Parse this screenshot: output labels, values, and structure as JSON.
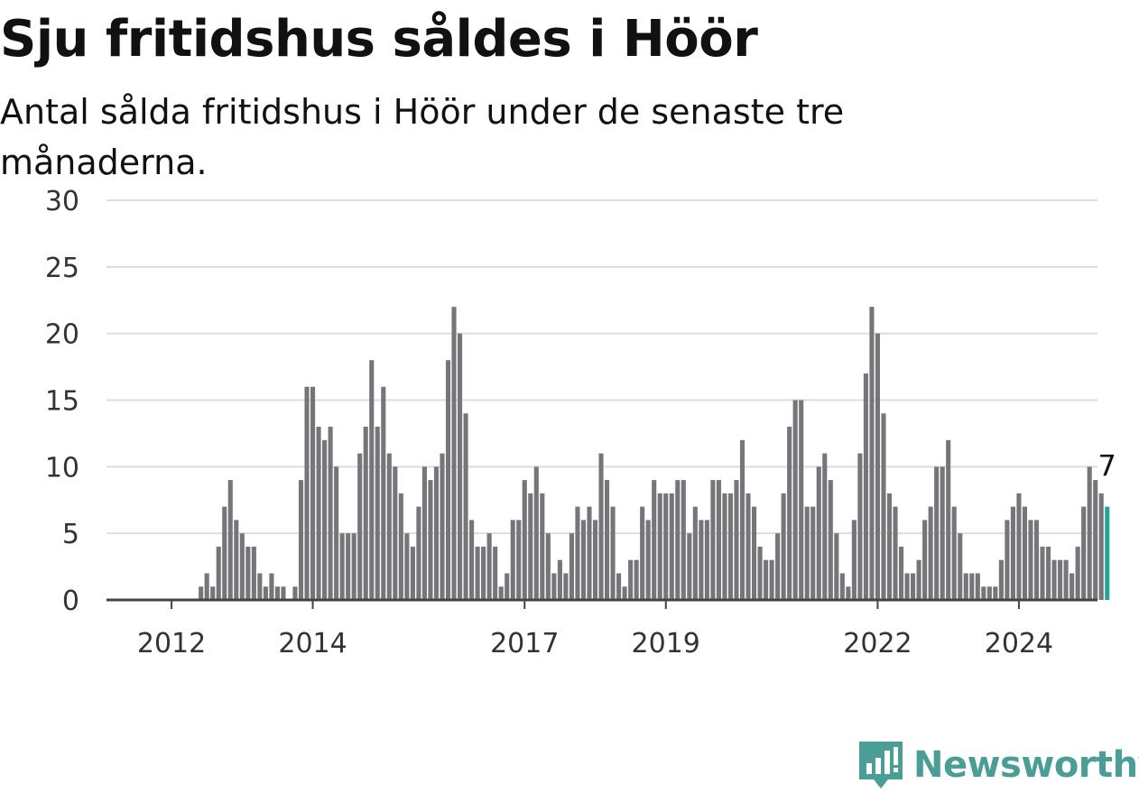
{
  "title": "Sju fritidshus såldes i Höör",
  "subtitle": "Antal sålda fritidshus i Höör under de senaste tre månaderna.",
  "brand": {
    "name": "Newsworthy",
    "color": "#4a9e96"
  },
  "colors": {
    "bar": "#76757a",
    "highlight": "#26a39a",
    "grid": "#dddddd",
    "axis": "#444444"
  },
  "chart_data": {
    "type": "bar",
    "ylim": [
      0,
      30
    ],
    "yticks": [
      0,
      5,
      10,
      15,
      20,
      25,
      30
    ],
    "first_bar_month": "2011-10",
    "xticks": [
      {
        "label": "2012",
        "month": "2012-01"
      },
      {
        "label": "2014",
        "month": "2014-01"
      },
      {
        "label": "2017",
        "month": "2017-01"
      },
      {
        "label": "2019",
        "month": "2019-01"
      },
      {
        "label": "2022",
        "month": "2022-01"
      },
      {
        "label": "2024",
        "month": "2024-01"
      }
    ],
    "values": [
      0,
      0,
      0,
      0,
      0,
      0,
      0,
      0,
      1,
      2,
      1,
      4,
      7,
      9,
      6,
      5,
      4,
      4,
      2,
      1,
      2,
      1,
      1,
      0,
      1,
      9,
      16,
      16,
      13,
      12,
      13,
      10,
      5,
      5,
      5,
      11,
      13,
      18,
      13,
      16,
      11,
      10,
      8,
      5,
      4,
      7,
      10,
      9,
      10,
      11,
      18,
      22,
      20,
      14,
      6,
      4,
      4,
      5,
      4,
      1,
      2,
      6,
      6,
      9,
      8,
      10,
      8,
      5,
      2,
      3,
      2,
      5,
      7,
      6,
      7,
      6,
      11,
      9,
      7,
      2,
      1,
      3,
      3,
      7,
      6,
      9,
      8,
      8,
      8,
      9,
      9,
      5,
      7,
      6,
      6,
      9,
      9,
      8,
      8,
      9,
      12,
      8,
      7,
      4,
      3,
      3,
      5,
      8,
      13,
      15,
      15,
      7,
      7,
      10,
      11,
      9,
      5,
      2,
      1,
      6,
      11,
      17,
      22,
      20,
      14,
      8,
      7,
      4,
      2,
      2,
      3,
      6,
      7,
      10,
      10,
      12,
      7,
      5,
      2,
      2,
      2,
      1,
      1,
      1,
      3,
      6,
      7,
      8,
      7,
      6,
      6,
      4,
      4,
      3,
      3,
      3,
      2,
      4,
      7,
      10,
      9,
      8,
      7
    ],
    "highlight_last": 1,
    "bar_label": "7"
  }
}
